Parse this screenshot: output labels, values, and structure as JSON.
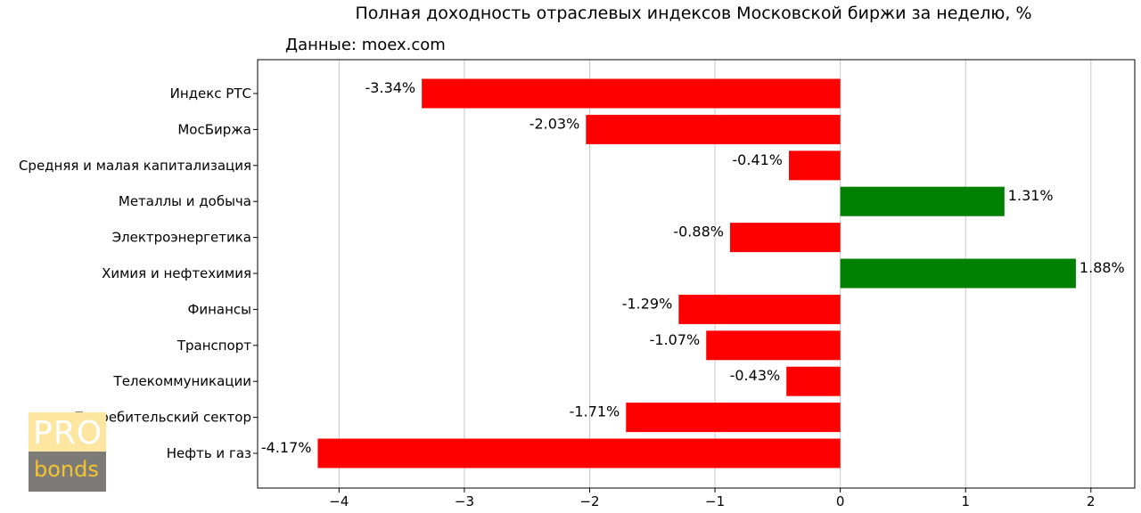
{
  "chart_data": {
    "type": "bar",
    "orientation": "horizontal",
    "title": "Полная доходность отраслевых индексов Московской биржи за неделю, %",
    "subtitle": "Данные: moex.com",
    "xlabel": "",
    "ylabel": "",
    "xlim": [
      -4.65,
      2.35
    ],
    "xticks": [
      -4,
      -3,
      -2,
      -1,
      0,
      1,
      2
    ],
    "xtick_labels": [
      "−4",
      "−3",
      "−2",
      "−1",
      "0",
      "1",
      "2"
    ],
    "grid": "vertical",
    "positive_color": "#008000",
    "negative_color": "#ff0000",
    "categories": [
      "Индекс РТС",
      "МосБиржа",
      "Средняя и малая капитализация",
      "Металлы и добыча",
      "Электроэнергетика",
      "Химия и нефтехимия",
      "Финансы",
      "Транспорт",
      "Телекоммуникации",
      "Потребительский сектор",
      "Нефть и газ"
    ],
    "values": [
      -3.34,
      -2.03,
      -0.41,
      1.31,
      -0.88,
      1.88,
      -1.29,
      -1.07,
      -0.43,
      -1.71,
      -4.17
    ],
    "data_labels": [
      "-3.34%",
      "-2.03%",
      "-0.41%",
      "1.31%",
      "-0.88%",
      "1.88%",
      "-1.29%",
      "-1.07%",
      "-0.43%",
      "-1.71%",
      "-4.17%"
    ]
  },
  "logo": {
    "top_text": "PRO",
    "bottom_text": "bonds"
  }
}
